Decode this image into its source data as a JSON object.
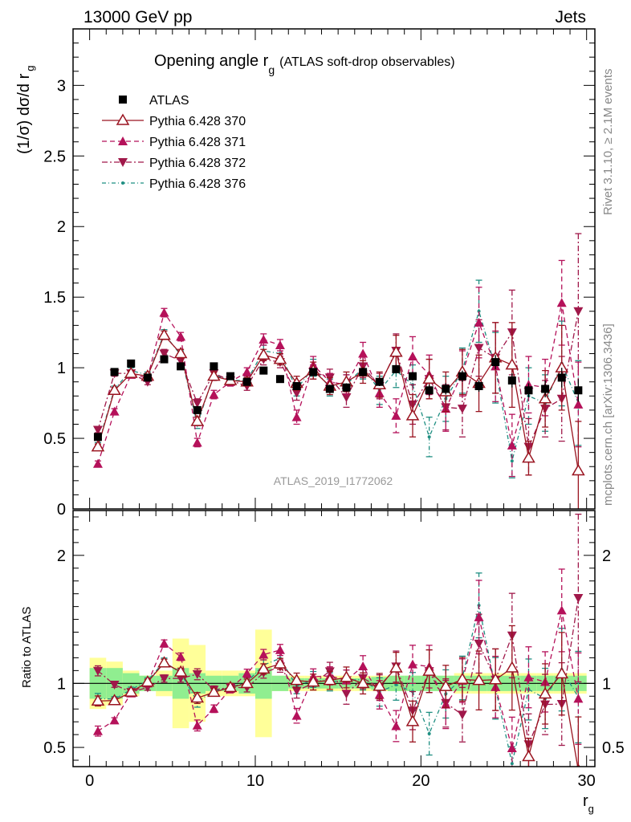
{
  "header": {
    "left": "13000 GeV pp",
    "right": "Jets"
  },
  "title": {
    "main": "Opening angle r",
    "sub": "g",
    "rest": "(ATLAS soft-drop observables)"
  },
  "ylabel_main": {
    "text": "(1/σ) dσ/d r",
    "sub": "g"
  },
  "ylabel_ratio": "Ratio to ATLAS",
  "xlabel": {
    "text": "r",
    "sub": "g"
  },
  "side_text_top": "Rivet 3.1.10, ≥ 2.1M events",
  "side_text_bottom": "mcplots.cern.ch [arXiv:1306.3436]",
  "watermark": "ATLAS_2019_I1772062",
  "colors": {
    "atlas": "#000000",
    "p370": "#9a1420",
    "p371": "#b5115a",
    "p372": "#a0184a",
    "p376": "#1f8f82",
    "band_stat": "#90ee90",
    "band_tot": "#ffff99"
  },
  "legend": [
    {
      "label": "ATLAS",
      "style": "data"
    },
    {
      "label": "Pythia 6.428 370",
      "style": "open-triangle-solid"
    },
    {
      "label": "Pythia 6.428 371",
      "style": "triangle-dashed"
    },
    {
      "label": "Pythia 6.428 372",
      "style": "down-triangle-dashdot"
    },
    {
      "label": "Pythia 6.428 376",
      "style": "dot-dashdot"
    }
  ],
  "chart_data": {
    "type": "line",
    "xlim": [
      -1,
      30.5
    ],
    "ylim_main": [
      0,
      3.4
    ],
    "ylim_ratio": [
      0.35,
      2.35
    ],
    "xticks": [
      0,
      10,
      20,
      30
    ],
    "yticks_main": [
      "0",
      "0.5",
      "1",
      "1.5",
      "2",
      "2.5",
      "3"
    ],
    "yticks_ratio": [
      "0.5",
      "1",
      "2"
    ],
    "x": [
      0.5,
      1.5,
      2.5,
      3.5,
      4.5,
      5.5,
      6.5,
      7.5,
      8.5,
      9.5,
      10.5,
      11.5,
      12.5,
      13.5,
      14.5,
      15.5,
      16.5,
      17.5,
      18.5,
      19.5,
      20.5,
      21.5,
      22.5,
      23.5,
      24.5,
      25.5,
      26.5,
      27.5,
      28.5,
      29.5
    ],
    "atlas": [
      0.51,
      0.97,
      1.03,
      0.93,
      1.06,
      1.01,
      0.7,
      1.01,
      0.94,
      0.9,
      0.98,
      0.92,
      0.87,
      0.97,
      0.85,
      0.86,
      0.97,
      0.9,
      0.99,
      0.94,
      0.84,
      0.85,
      0.94,
      0.87,
      1.04,
      0.91,
      0.84,
      0.85,
      0.93,
      0.84
    ],
    "atlas_err": [
      0.02,
      0.02,
      0.02,
      0.02,
      0.02,
      0.02,
      0.02,
      0.02,
      0.02,
      0.02,
      0.02,
      0.02,
      0.02,
      0.02,
      0.03,
      0.03,
      0.03,
      0.03,
      0.03,
      0.03,
      0.04,
      0.04,
      0.04,
      0.04,
      0.05,
      0.05,
      0.05,
      0.06,
      0.07,
      0.08
    ],
    "band_stat": [
      0.12,
      0.12,
      0.08,
      0.06,
      0.06,
      0.12,
      0.08,
      0.06,
      0.06,
      0.08,
      0.12,
      0.06,
      0.04,
      0.04,
      0.04,
      0.04,
      0.04,
      0.05,
      0.06,
      0.06,
      0.06,
      0.06,
      0.06,
      0.06,
      0.06,
      0.06,
      0.06,
      0.06,
      0.06,
      0.06
    ],
    "band_tot": [
      0.2,
      0.17,
      0.1,
      0.06,
      0.1,
      0.35,
      0.3,
      0.1,
      0.1,
      0.1,
      0.42,
      0.06,
      0.06,
      0.06,
      0.06,
      0.06,
      0.06,
      0.06,
      0.06,
      0.06,
      0.06,
      0.06,
      0.08,
      0.08,
      0.08,
      0.08,
      0.08,
      0.08,
      0.08,
      0.08
    ],
    "series": [
      {
        "name": "Pythia 6.428 370",
        "key": "p370",
        "values": [
          0.44,
          0.84,
          0.96,
          0.94,
          1.23,
          1.1,
          0.62,
          0.94,
          0.91,
          0.9,
          1.09,
          1.06,
          0.89,
          0.98,
          0.87,
          0.9,
          0.97,
          0.88,
          1.11,
          0.66,
          0.92,
          0.83,
          0.97,
          0.89,
          1.07,
          1.02,
          0.36,
          0.78,
          1.0,
          0.27
        ],
        "err": [
          0.02,
          0.02,
          0.02,
          0.02,
          0.03,
          0.03,
          0.03,
          0.03,
          0.03,
          0.03,
          0.04,
          0.04,
          0.05,
          0.06,
          0.06,
          0.07,
          0.08,
          0.09,
          0.12,
          0.15,
          0.14,
          0.14,
          0.16,
          0.2,
          0.25,
          0.3,
          0.12,
          0.2,
          0.3,
          0.35
        ]
      },
      {
        "name": "Pythia 6.428 371",
        "key": "p371",
        "values": [
          0.32,
          0.69,
          0.95,
          0.93,
          1.39,
          1.22,
          0.47,
          0.81,
          0.9,
          0.97,
          1.2,
          1.16,
          0.65,
          1.02,
          0.9,
          0.88,
          1.1,
          0.82,
          0.66,
          1.08,
          0.95,
          0.71,
          0.96,
          1.32,
          1.01,
          0.45,
          0.88,
          0.86,
          1.46,
          0.74
        ],
        "err": [
          0.02,
          0.02,
          0.02,
          0.02,
          0.03,
          0.03,
          0.03,
          0.03,
          0.03,
          0.03,
          0.04,
          0.04,
          0.05,
          0.06,
          0.06,
          0.07,
          0.08,
          0.1,
          0.12,
          0.14,
          0.14,
          0.16,
          0.16,
          0.25,
          0.25,
          0.22,
          0.2,
          0.2,
          0.3,
          0.3
        ]
      },
      {
        "name": "Pythia 6.428 372",
        "key": "p372",
        "values": [
          0.56,
          0.96,
          0.96,
          0.9,
          1.1,
          1.05,
          0.75,
          0.96,
          0.91,
          0.87,
          1.06,
          1.04,
          0.82,
          0.97,
          0.93,
          0.79,
          1.01,
          0.87,
          1.12,
          0.74,
          0.92,
          0.72,
          0.71,
          1.14,
          1.07,
          1.25,
          0.44,
          0.71,
          0.78,
          1.4
        ],
        "err": [
          0.02,
          0.02,
          0.02,
          0.02,
          0.03,
          0.03,
          0.03,
          0.03,
          0.03,
          0.03,
          0.04,
          0.04,
          0.05,
          0.05,
          0.06,
          0.07,
          0.08,
          0.09,
          0.12,
          0.14,
          0.14,
          0.16,
          0.2,
          0.2,
          0.25,
          0.3,
          0.2,
          0.2,
          0.3,
          0.55
        ]
      },
      {
        "name": "Pythia 6.428 376",
        "key": "p376",
        "values": [
          0.45,
          0.85,
          0.98,
          0.95,
          1.24,
          1.09,
          0.6,
          0.95,
          0.91,
          0.91,
          1.12,
          1.1,
          0.85,
          1.0,
          0.86,
          0.88,
          1.0,
          0.84,
          0.98,
          0.88,
          0.51,
          0.78,
          0.98,
          1.4,
          1.0,
          0.34,
          0.8,
          0.75,
          1.03,
          0.75
        ],
        "err": [
          0.02,
          0.02,
          0.02,
          0.02,
          0.03,
          0.03,
          0.03,
          0.03,
          0.03,
          0.03,
          0.04,
          0.04,
          0.05,
          0.06,
          0.06,
          0.07,
          0.08,
          0.1,
          0.12,
          0.14,
          0.14,
          0.16,
          0.16,
          0.22,
          0.25,
          0.12,
          0.2,
          0.2,
          0.3,
          0.3
        ]
      }
    ]
  }
}
